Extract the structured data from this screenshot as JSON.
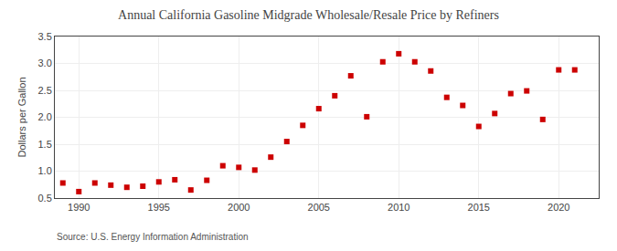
{
  "chart_data": {
    "type": "scatter",
    "title": "Annual California Gasoline Midgrade Wholesale/Resale Price by Refiners",
    "ylabel": "Dollars per Gallon",
    "source": "Source: U.S. Energy Information Administration",
    "x": [
      1989,
      1990,
      1991,
      1992,
      1993,
      1994,
      1995,
      1996,
      1997,
      1998,
      1999,
      2000,
      2001,
      2002,
      2003,
      2004,
      2005,
      2006,
      2007,
      2008,
      2009,
      2010,
      2011,
      2012,
      2013,
      2014,
      2015,
      2016,
      2017,
      2018,
      2019,
      2020,
      2021
    ],
    "values": [
      0.78,
      0.62,
      0.78,
      0.74,
      0.7,
      0.72,
      0.8,
      0.84,
      0.65,
      0.83,
      1.1,
      1.07,
      1.02,
      1.26,
      1.55,
      1.85,
      2.16,
      2.4,
      2.77,
      2.01,
      3.03,
      3.18,
      3.03,
      2.86,
      2.37,
      2.22,
      1.83,
      2.07,
      2.44,
      2.49,
      1.96,
      2.88,
      2.88
    ],
    "color": "#cc0000",
    "marker": "square",
    "xlim": [
      1988.5,
      2022.5
    ],
    "ylim": [
      0.5,
      3.5
    ],
    "xticks": [
      1990,
      1995,
      2000,
      2005,
      2010,
      2015,
      2020
    ],
    "yticks": [
      0.5,
      {
        "value": 1.0,
        "label": "1.0"
      },
      1.5,
      {
        "value": 2.0,
        "label": "2.0"
      },
      2.5,
      {
        "value": 3.0,
        "label": "3.0"
      },
      3.5
    ],
    "grid": true
  }
}
